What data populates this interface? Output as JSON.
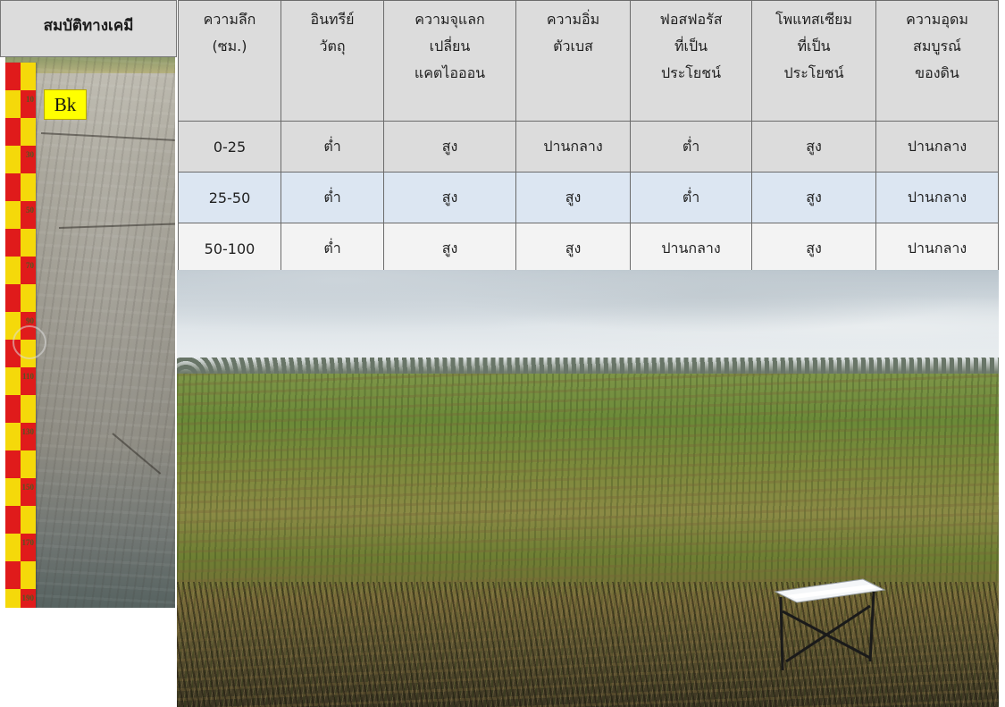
{
  "header": {
    "title": "สมบัติทางเคมี"
  },
  "profile": {
    "horizon_label": "Bk",
    "ruler_marks": [
      "10",
      "30",
      "50",
      "70",
      "90",
      "110",
      "130",
      "150",
      "170",
      "190"
    ]
  },
  "table": {
    "columns": [
      [
        "ความลึก",
        "(ซม.)"
      ],
      [
        "อินทรีย์",
        "วัตถุ"
      ],
      [
        "ความจุแลก",
        "เปลี่ยน",
        "แคตไอออน"
      ],
      [
        "ความอิ่ม",
        "ตัวเบส"
      ],
      [
        "ฟอสฟอรัส",
        "ที่เป็น",
        "ประโยชน์"
      ],
      [
        "โพแทสเซียม",
        "ที่เป็น",
        "ประโยชน์"
      ],
      [
        "ความอุดม",
        "สมบูรณ์",
        "ของดิน"
      ]
    ],
    "rows": [
      [
        "0-25",
        "ต่ำ",
        "สูง",
        "ปานกลาง",
        "ต่ำ",
        "สูง",
        "ปานกลาง"
      ],
      [
        "25-50",
        "ต่ำ",
        "สูง",
        "สูง",
        "ต่ำ",
        "สูง",
        "ปานกลาง"
      ],
      [
        "50-100",
        "ต่ำ",
        "สูง",
        "สูง",
        "ปานกลาง",
        "สูง",
        "ปานกลาง"
      ]
    ]
  },
  "colors": {
    "header_bg": "#dcdcdc",
    "row_alt_bg": "#dce6f2",
    "horizon_label_bg": "#ffff00",
    "ruler_red": "#e01b1b",
    "ruler_yellow": "#f5d90a"
  }
}
